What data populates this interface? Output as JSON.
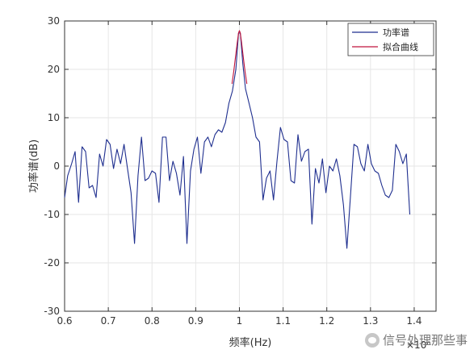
{
  "chart_data": {
    "type": "line",
    "title": "",
    "xlabel": "频率(Hz)",
    "ylabel": "功率谱(dB)",
    "x_exponent_label": "×10⁶",
    "xlim": [
      0.6,
      1.45
    ],
    "ylim": [
      -30,
      30
    ],
    "xticks": [
      0.6,
      0.7,
      0.8,
      0.9,
      1.0,
      1.1,
      1.2,
      1.3,
      1.4
    ],
    "xtick_labels": [
      "0.6",
      "0.7",
      "0.8",
      "0.9",
      "1",
      "1.1",
      "1.2",
      "1.3",
      "1.4"
    ],
    "yticks": [
      -30,
      -20,
      -10,
      0,
      10,
      20,
      30
    ],
    "ytick_labels": [
      "-30",
      "-20",
      "-10",
      "0",
      "10",
      "20",
      "30"
    ],
    "grid": true,
    "legend_position": "top-right",
    "series": [
      {
        "name": "功率谱",
        "color": "#1f2f8f",
        "points": [
          [
            0.6,
            -6.5
          ],
          [
            0.607,
            -2
          ],
          [
            0.616,
            0.5
          ],
          [
            0.624,
            3
          ],
          [
            0.632,
            -7.5
          ],
          [
            0.64,
            4
          ],
          [
            0.648,
            3
          ],
          [
            0.656,
            -4.5
          ],
          [
            0.664,
            -4
          ],
          [
            0.672,
            -6.5
          ],
          [
            0.68,
            2.5
          ],
          [
            0.688,
            0
          ],
          [
            0.696,
            5.5
          ],
          [
            0.704,
            4.5
          ],
          [
            0.712,
            -0.5
          ],
          [
            0.72,
            3.5
          ],
          [
            0.728,
            0.5
          ],
          [
            0.736,
            4.5
          ],
          [
            0.744,
            -0.5
          ],
          [
            0.752,
            -5.5
          ],
          [
            0.76,
            -16
          ],
          [
            0.768,
            -2
          ],
          [
            0.776,
            6
          ],
          [
            0.784,
            -3
          ],
          [
            0.792,
            -2.5
          ],
          [
            0.8,
            -1
          ],
          [
            0.808,
            -1.5
          ],
          [
            0.816,
            -7.5
          ],
          [
            0.824,
            6
          ],
          [
            0.832,
            6
          ],
          [
            0.84,
            -3
          ],
          [
            0.848,
            1
          ],
          [
            0.856,
            -1.5
          ],
          [
            0.864,
            -6
          ],
          [
            0.872,
            2
          ],
          [
            0.88,
            -16
          ],
          [
            0.888,
            -1
          ],
          [
            0.896,
            3.5
          ],
          [
            0.904,
            6
          ],
          [
            0.912,
            -1.5
          ],
          [
            0.92,
            5
          ],
          [
            0.928,
            6
          ],
          [
            0.936,
            4
          ],
          [
            0.944,
            6.5
          ],
          [
            0.952,
            7.5
          ],
          [
            0.96,
            7
          ],
          [
            0.968,
            9
          ],
          [
            0.976,
            13
          ],
          [
            0.984,
            15.5
          ],
          [
            0.992,
            20
          ],
          [
            0.998,
            27.5
          ],
          [
            1.002,
            27.5
          ],
          [
            1.008,
            21
          ],
          [
            1.014,
            16
          ],
          [
            1.022,
            13
          ],
          [
            1.03,
            10
          ],
          [
            1.038,
            6
          ],
          [
            1.046,
            5
          ],
          [
            1.054,
            -7
          ],
          [
            1.062,
            -2.5
          ],
          [
            1.07,
            -1
          ],
          [
            1.078,
            -7
          ],
          [
            1.086,
            1
          ],
          [
            1.094,
            8
          ],
          [
            1.102,
            5.5
          ],
          [
            1.11,
            5
          ],
          [
            1.118,
            -3
          ],
          [
            1.126,
            -3.5
          ],
          [
            1.134,
            6.5
          ],
          [
            1.142,
            1
          ],
          [
            1.15,
            3
          ],
          [
            1.158,
            3.5
          ],
          [
            1.166,
            -12
          ],
          [
            1.174,
            -0.5
          ],
          [
            1.182,
            -3.5
          ],
          [
            1.19,
            1.5
          ],
          [
            1.198,
            -5.5
          ],
          [
            1.206,
            0
          ],
          [
            1.214,
            -1
          ],
          [
            1.222,
            1.5
          ],
          [
            1.23,
            -2
          ],
          [
            1.238,
            -8
          ],
          [
            1.246,
            -17
          ],
          [
            1.254,
            -6.5
          ],
          [
            1.262,
            4.5
          ],
          [
            1.27,
            4
          ],
          [
            1.278,
            0.5
          ],
          [
            1.286,
            -1
          ],
          [
            1.294,
            4.5
          ],
          [
            1.302,
            0.5
          ],
          [
            1.31,
            -1
          ],
          [
            1.318,
            -1.5
          ],
          [
            1.326,
            -4
          ],
          [
            1.334,
            -6
          ],
          [
            1.342,
            -6.5
          ],
          [
            1.35,
            -5
          ],
          [
            1.358,
            4.5
          ],
          [
            1.366,
            3
          ],
          [
            1.374,
            0.5
          ],
          [
            1.382,
            2.5
          ],
          [
            1.39,
            -10
          ]
        ]
      },
      {
        "name": "拟合曲线",
        "color": "#c0143c",
        "points": [
          [
            0.983,
            17
          ],
          [
            0.987,
            19.5
          ],
          [
            0.991,
            22.5
          ],
          [
            0.995,
            25.5
          ],
          [
            0.998,
            27.5
          ],
          [
            1.0,
            28
          ],
          [
            1.002,
            27.5
          ],
          [
            1.005,
            25.5
          ],
          [
            1.009,
            22.5
          ],
          [
            1.013,
            19.5
          ],
          [
            1.017,
            17
          ]
        ]
      }
    ]
  },
  "watermark": "信号处理那些事"
}
